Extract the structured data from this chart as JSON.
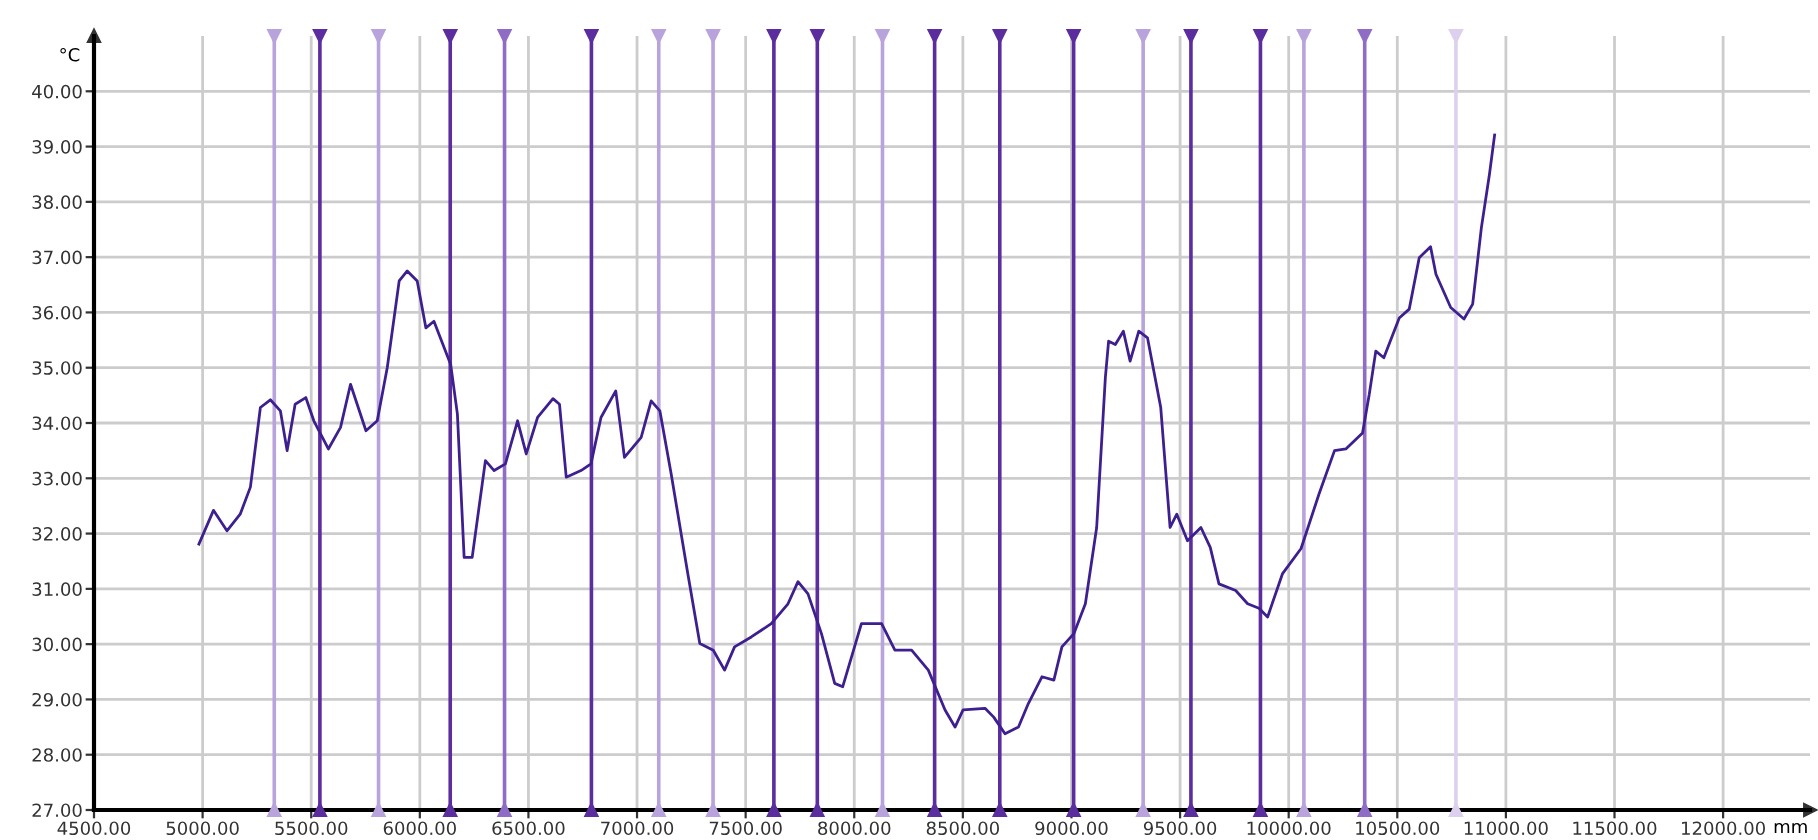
{
  "chart_data": {
    "type": "line",
    "xlabel": "mm",
    "ylabel": "°C",
    "xlim": [
      4500,
      12400
    ],
    "ylim": [
      27,
      41
    ],
    "xticks": [
      {
        "value": 4500,
        "label": "4500.00"
      },
      {
        "value": 5000,
        "label": "5000.00"
      },
      {
        "value": 5500,
        "label": "5500.00"
      },
      {
        "value": 6000,
        "label": "6000.00"
      },
      {
        "value": 6500,
        "label": "6500.00"
      },
      {
        "value": 7000,
        "label": "7000.00"
      },
      {
        "value": 7500,
        "label": "7500.00"
      },
      {
        "value": 8000,
        "label": "8000.00"
      },
      {
        "value": 8500,
        "label": "8500.00"
      },
      {
        "value": 9000,
        "label": "9000.00"
      },
      {
        "value": 9500,
        "label": "9500.00"
      },
      {
        "value": 10000,
        "label": "10000.00"
      },
      {
        "value": 10500,
        "label": "10500.00"
      },
      {
        "value": 11000,
        "label": "11000.00"
      },
      {
        "value": 11500,
        "label": "11500.00"
      },
      {
        "value": 12000,
        "label": "12000.00"
      }
    ],
    "yticks": [
      {
        "value": 27,
        "label": "27.00"
      },
      {
        "value": 28,
        "label": "28.00"
      },
      {
        "value": 29,
        "label": "29.00"
      },
      {
        "value": 30,
        "label": "30.00"
      },
      {
        "value": 31,
        "label": "31.00"
      },
      {
        "value": 32,
        "label": "32.00"
      },
      {
        "value": 33,
        "label": "33.00"
      },
      {
        "value": 34,
        "label": "34.00"
      },
      {
        "value": 35,
        "label": "35.00"
      },
      {
        "value": 36,
        "label": "36.00"
      },
      {
        "value": 37,
        "label": "37.00"
      },
      {
        "value": 38,
        "label": "38.00"
      },
      {
        "value": 39,
        "label": "39.00"
      },
      {
        "value": 40,
        "label": "40.00"
      }
    ],
    "grid": true,
    "marker": "none",
    "line_style": "solid",
    "series": [
      {
        "color": "#3d1f8f",
        "x": [
          4983,
          5050,
          5112,
          5173,
          5220,
          5266,
          5312,
          5358,
          5389,
          5426,
          5475,
          5512,
          5579,
          5635,
          5681,
          5752,
          5804,
          5850,
          5905,
          5942,
          5988,
          6028,
          6065,
          6142,
          6173,
          6204,
          6241,
          6302,
          6342,
          6394,
          6450,
          6490,
          6542,
          6613,
          6643,
          6674,
          6742,
          6788,
          6834,
          6902,
          6942,
          7019,
          7065,
          7105,
          7157,
          7234,
          7289,
          7351,
          7403,
          7449,
          7526,
          7618,
          7695,
          7741,
          7787,
          7849,
          7910,
          7947,
          8033,
          8126,
          8187,
          8264,
          8341,
          8418,
          8464,
          8501,
          8602,
          8642,
          8694,
          8756,
          8802,
          8864,
          8919,
          8956,
          9011,
          9064,
          9116,
          9156,
          9171,
          9202,
          9239,
          9270,
          9310,
          9350,
          9411,
          9454,
          9485,
          9534,
          9596,
          9639,
          9679,
          9756,
          9811,
          9863,
          9903,
          9971,
          10057,
          10140,
          10211,
          10263,
          10340,
          10371,
          10401,
          10438,
          10509,
          10555,
          10601,
          10653,
          10678,
          10746,
          10807,
          10847,
          10887,
          10924,
          10948
        ],
        "values": [
          31.81,
          32.42,
          32.05,
          32.35,
          32.84,
          34.28,
          34.42,
          34.22,
          33.5,
          34.34,
          34.46,
          34.04,
          33.53,
          33.92,
          34.7,
          33.86,
          34.04,
          35.0,
          36.57,
          36.75,
          36.57,
          35.72,
          35.84,
          35.06,
          34.16,
          31.57,
          31.57,
          33.32,
          33.14,
          33.26,
          34.04,
          33.44,
          34.1,
          34.44,
          34.34,
          33.02,
          33.14,
          33.26,
          34.1,
          34.58,
          33.38,
          33.74,
          34.4,
          34.22,
          33.08,
          31.27,
          30.01,
          29.89,
          29.53,
          29.95,
          30.13,
          30.37,
          30.73,
          31.13,
          30.91,
          30.19,
          29.29,
          29.23,
          30.37,
          30.37,
          29.89,
          29.89,
          29.53,
          28.81,
          28.5,
          28.81,
          28.84,
          28.68,
          28.38,
          28.5,
          28.93,
          29.41,
          29.35,
          29.95,
          30.19,
          30.73,
          32.11,
          34.82,
          35.48,
          35.42,
          35.66,
          35.12,
          35.66,
          35.54,
          34.28,
          32.11,
          32.35,
          31.87,
          32.11,
          31.75,
          31.09,
          30.97,
          30.73,
          30.65,
          30.49,
          31.27,
          31.73,
          32.72,
          33.5,
          33.53,
          33.82,
          34.52,
          35.3,
          35.18,
          35.9,
          36.06,
          36.99,
          37.19,
          36.69,
          36.09,
          35.88,
          36.15,
          37.53,
          38.49,
          39.21
        ]
      }
    ],
    "ref_lines": [
      {
        "axis": "x",
        "value": 5330,
        "color": "#b9a3dc"
      },
      {
        "axis": "x",
        "value": 5540,
        "color": "#5b2d9e"
      },
      {
        "axis": "x",
        "value": 5810,
        "color": "#b9a3dc"
      },
      {
        "axis": "x",
        "value": 6140,
        "color": "#5b2d9e"
      },
      {
        "axis": "x",
        "value": 6390,
        "color": "#8f6cc6"
      },
      {
        "axis": "x",
        "value": 6790,
        "color": "#5b2d9e"
      },
      {
        "axis": "x",
        "value": 7100,
        "color": "#b9a3dc"
      },
      {
        "axis": "x",
        "value": 7350,
        "color": "#b9a3dc"
      },
      {
        "axis": "x",
        "value": 7630,
        "color": "#5b2d9e"
      },
      {
        "axis": "x",
        "value": 7830,
        "color": "#5b2d9e"
      },
      {
        "axis": "x",
        "value": 8130,
        "color": "#b9a3dc"
      },
      {
        "axis": "x",
        "value": 8370,
        "color": "#5b2d9e"
      },
      {
        "axis": "x",
        "value": 8670,
        "color": "#5b2d9e"
      },
      {
        "axis": "x",
        "value": 9010,
        "color": "#5b2d9e"
      },
      {
        "axis": "x",
        "value": 9330,
        "color": "#b9a3dc"
      },
      {
        "axis": "x",
        "value": 9550,
        "color": "#5b2d9e"
      },
      {
        "axis": "x",
        "value": 9870,
        "color": "#5b2d9e"
      },
      {
        "axis": "x",
        "value": 10070,
        "color": "#b9a3dc"
      },
      {
        "axis": "x",
        "value": 10350,
        "color": "#8f6cc6"
      },
      {
        "axis": "x",
        "value": 10770,
        "color": "#ddd0ef"
      }
    ]
  }
}
